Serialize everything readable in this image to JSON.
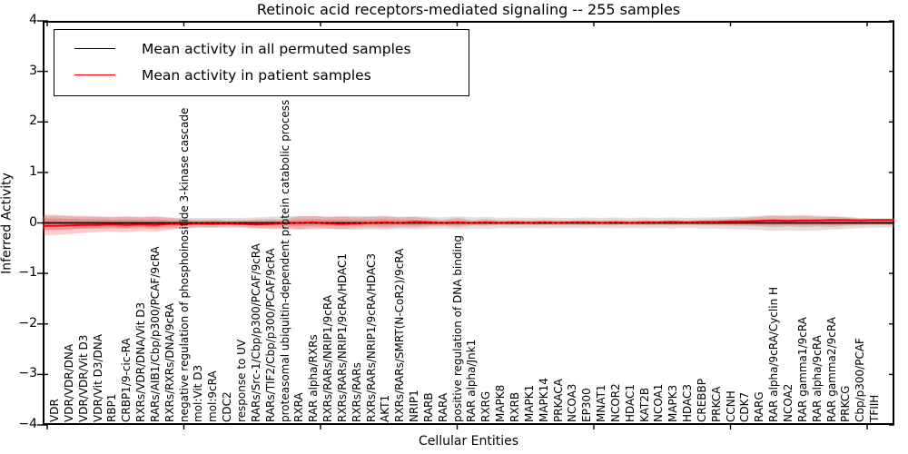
{
  "chart_data": {
    "type": "line",
    "title": "Retinoic acid receptors-mediated signaling -- 255 samples",
    "xlabel": "Cellular Entities",
    "ylabel": "Inferred Activity",
    "ylim": [
      -4,
      4
    ],
    "grid": false,
    "legend_position": "upper left",
    "yticks": [
      {
        "value": 4,
        "label": "4"
      },
      {
        "value": 3,
        "label": "3"
      },
      {
        "value": 2,
        "label": "2"
      },
      {
        "value": 1,
        "label": "1"
      },
      {
        "value": 0,
        "label": "0"
      },
      {
        "value": -1,
        "label": "−1"
      },
      {
        "value": -2,
        "label": "−2"
      },
      {
        "value": -3,
        "label": "−3"
      },
      {
        "value": -4,
        "label": "−4"
      }
    ],
    "categories": [
      "VDR",
      "VDR/VDR/DNA",
      "VDR/VDR/Vit D3",
      "VDR/Vit D3/DNA",
      "RBP1",
      "CRBP1/9-cic-RA",
      "RXRs/VDR/DNA/Vit D3",
      "RARs/AIB1/Cbp/p300/PCAF/9cRA",
      "RXRs/RXRs/DNA/9cRA",
      "negative regulation of phosphoinositide 3-kinase cascade",
      "mol:Vit D3",
      "mol:9cRA",
      "CDC2",
      "response to UV",
      "RARs/Src-1/Cbp/p300/PCAF/9cRA",
      "RARs/TIF2/Cbp/p300/PCAF/9cRA",
      "proteasomal ubiquitin-dependent protein catabolic process",
      "RXRA",
      "RAR alpha/RXRs",
      "RXRs/RARs/NRIP1/9cRA",
      "RXRs/RARs/NRIP1/9cRA/HDAC1",
      "RXRs/RARs",
      "RXRs/RARs/NRIP1/9cRA/HDAC3",
      "AKT1",
      "RXRs/RARs/SMRT(N-CoR2)/9cRA",
      "NRIP1",
      "RARB",
      "RARA",
      "positive regulation of DNA binding",
      "RAR alpha/Jnk1",
      "RXRG",
      "MAPK8",
      "RXRB",
      "MAPK1",
      "MAPK14",
      "PRKACA",
      "NCOA3",
      "EP300",
      "MNAT1",
      "NCOR2",
      "HDAC1",
      "KAT2B",
      "NCOA1",
      "MAPK3",
      "HDAC3",
      "CREBBP",
      "PRKCA",
      "CCNH",
      "CDK7",
      "RARG",
      "RAR alpha/9cRA/Cyclin H",
      "NCOA2",
      "RAR gamma1/9cRA",
      "RAR alpha/9cRA",
      "RAR gamma2/9cRA",
      "PRKCG",
      "Cbp/p300/PCAF",
      "TFIIH"
    ],
    "series": [
      {
        "name": "Mean activity in all permuted samples",
        "color": "#000000",
        "line_style": "solid",
        "values": [
          0,
          0,
          0,
          0,
          0,
          0,
          0,
          0,
          0,
          0,
          0,
          0,
          0,
          0,
          0,
          0,
          0,
          0,
          0,
          0,
          0,
          0,
          0,
          0,
          0,
          0,
          0,
          0,
          0,
          0,
          0,
          0,
          0,
          0,
          0,
          0,
          0,
          0,
          0,
          0,
          0,
          0,
          0,
          0,
          0,
          0,
          0,
          0,
          0,
          0,
          0,
          0,
          0,
          0,
          0,
          0,
          0,
          0
        ]
      },
      {
        "name": "Mean activity in patient samples",
        "color": "#ff0000",
        "line_style": "solid",
        "values": [
          -0.06,
          -0.05,
          -0.04,
          -0.04,
          -0.03,
          -0.04,
          -0.03,
          -0.04,
          -0.02,
          -0.02,
          -0.01,
          -0.02,
          -0.01,
          -0.02,
          -0.03,
          -0.02,
          -0.01,
          0,
          0.01,
          -0.01,
          -0.02,
          -0.01,
          0,
          0.01,
          0,
          0.02,
          0.01,
          0,
          0.01,
          0,
          0.01,
          0,
          0.01,
          0,
          0.01,
          0,
          0.01,
          0.01,
          0,
          0.01,
          0,
          0.01,
          0.01,
          0.02,
          0.01,
          0.02,
          0.02,
          0.03,
          0.03,
          0.04,
          0.05,
          0.04,
          0.05,
          0.05,
          0.06,
          0.06,
          0.05,
          0.06
        ]
      }
    ],
    "bands": [
      {
        "name": "permuted samples spread",
        "color": "#999999",
        "opacity": 0.3,
        "half_width": [
          0.14,
          0.13,
          0.12,
          0.12,
          0.11,
          0.12,
          0.11,
          0.12,
          0.11,
          0.1,
          0.1,
          0.1,
          0.1,
          0.1,
          0.11,
          0.12,
          0.13,
          0.14,
          0.13,
          0.12,
          0.13,
          0.14,
          0.13,
          0.14,
          0.12,
          0.13,
          0.12,
          0.11,
          0.13,
          0.11,
          0.12,
          0.1,
          0.11,
          0.1,
          0.11,
          0.1,
          0.1,
          0.11,
          0.1,
          0.11,
          0.1,
          0.11,
          0.1,
          0.11,
          0.1,
          0.11,
          0.11,
          0.12,
          0.13,
          0.14,
          0.16,
          0.15,
          0.16,
          0.15,
          0.13,
          0.12,
          0.1,
          0.09
        ]
      },
      {
        "name": "patient samples spread",
        "color": "#ff0000",
        "opacity": 0.2,
        "upper": [
          0.16,
          0.15,
          0.14,
          0.13,
          0.12,
          0.13,
          0.12,
          0.13,
          0.1,
          0.08,
          0.06,
          0.07,
          0.05,
          0.06,
          0.07,
          0.08,
          0.07,
          0.13,
          0.14,
          0.12,
          0.13,
          0.11,
          0.12,
          0.13,
          0.11,
          0.12,
          0.09,
          0.06,
          0.1,
          0.05,
          0.08,
          0.05,
          0.06,
          0.05,
          0.06,
          0.05,
          0.05,
          0.06,
          0.05,
          0.06,
          0.05,
          0.06,
          0.05,
          0.06,
          0.05,
          0.06,
          0.07,
          0.08,
          0.1,
          0.12,
          0.14,
          0.13,
          0.14,
          0.12,
          0.13,
          0.11,
          0.09,
          0.08
        ],
        "lower": [
          -0.24,
          -0.22,
          -0.2,
          -0.18,
          -0.17,
          -0.18,
          -0.16,
          -0.17,
          -0.14,
          -0.11,
          -0.08,
          -0.09,
          -0.07,
          -0.08,
          -0.1,
          -0.11,
          -0.09,
          -0.12,
          -0.1,
          -0.11,
          -0.12,
          -0.1,
          -0.09,
          -0.1,
          -0.08,
          -0.09,
          -0.07,
          -0.06,
          -0.08,
          -0.05,
          -0.06,
          -0.04,
          -0.05,
          -0.04,
          -0.05,
          -0.04,
          -0.04,
          -0.05,
          -0.04,
          -0.05,
          -0.04,
          -0.05,
          -0.04,
          -0.05,
          -0.04,
          -0.05,
          -0.05,
          -0.06,
          -0.06,
          -0.07,
          -0.08,
          -0.07,
          -0.08,
          -0.07,
          -0.08,
          -0.06,
          -0.05,
          -0.04
        ]
      }
    ],
    "zero_line": {
      "value": 0,
      "color": "#000000",
      "style": "dotted"
    }
  },
  "colors": {
    "background": "#ffffff",
    "axis": "#000000"
  }
}
